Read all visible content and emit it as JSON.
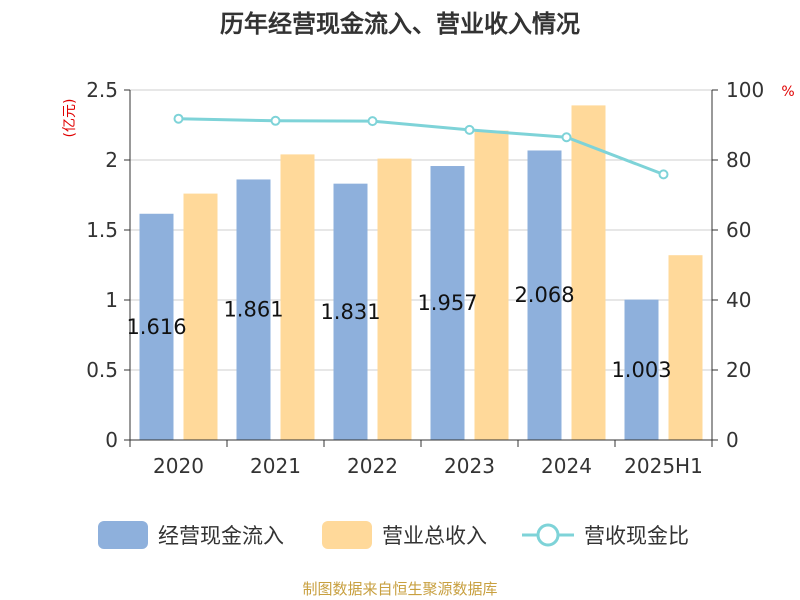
{
  "title": "历年经营现金流入、营业收入情况",
  "source": "制图数据来自恒生聚源数据库",
  "colors": {
    "bar1": "#8eb0dc",
    "bar2": "#ffd99a",
    "line": "#7ed3d8",
    "unit": "#e00000"
  },
  "chart_data": {
    "type": "bar",
    "categories": [
      "2020",
      "2021",
      "2022",
      "2023",
      "2024",
      "2025H1"
    ],
    "y_left": {
      "unit": "(亿元)",
      "range": [
        0,
        2.5
      ],
      "ticks": [
        "0",
        "0.5",
        "1",
        "1.5",
        "2",
        "2.5"
      ]
    },
    "y_right": {
      "unit": "%",
      "range": [
        0,
        100
      ],
      "ticks": [
        "0",
        "20",
        "40",
        "60",
        "80",
        "100"
      ]
    },
    "grid": true,
    "legend": "bottom",
    "series": [
      {
        "name": "经营现金流入",
        "type": "bar",
        "axis": "left",
        "values": [
          1.616,
          1.861,
          1.831,
          1.957,
          2.068,
          1.003
        ],
        "labels": [
          "1.616",
          "1.861",
          "1.831",
          "1.957",
          "2.068",
          "1.003"
        ]
      },
      {
        "name": "营业总收入",
        "type": "bar",
        "axis": "left",
        "values": [
          1.76,
          2.04,
          2.01,
          2.21,
          2.39,
          1.32
        ]
      },
      {
        "name": "营收现金比",
        "type": "line",
        "axis": "right",
        "values": [
          91.8,
          91.2,
          91.1,
          88.6,
          86.5,
          75.9
        ]
      }
    ]
  }
}
